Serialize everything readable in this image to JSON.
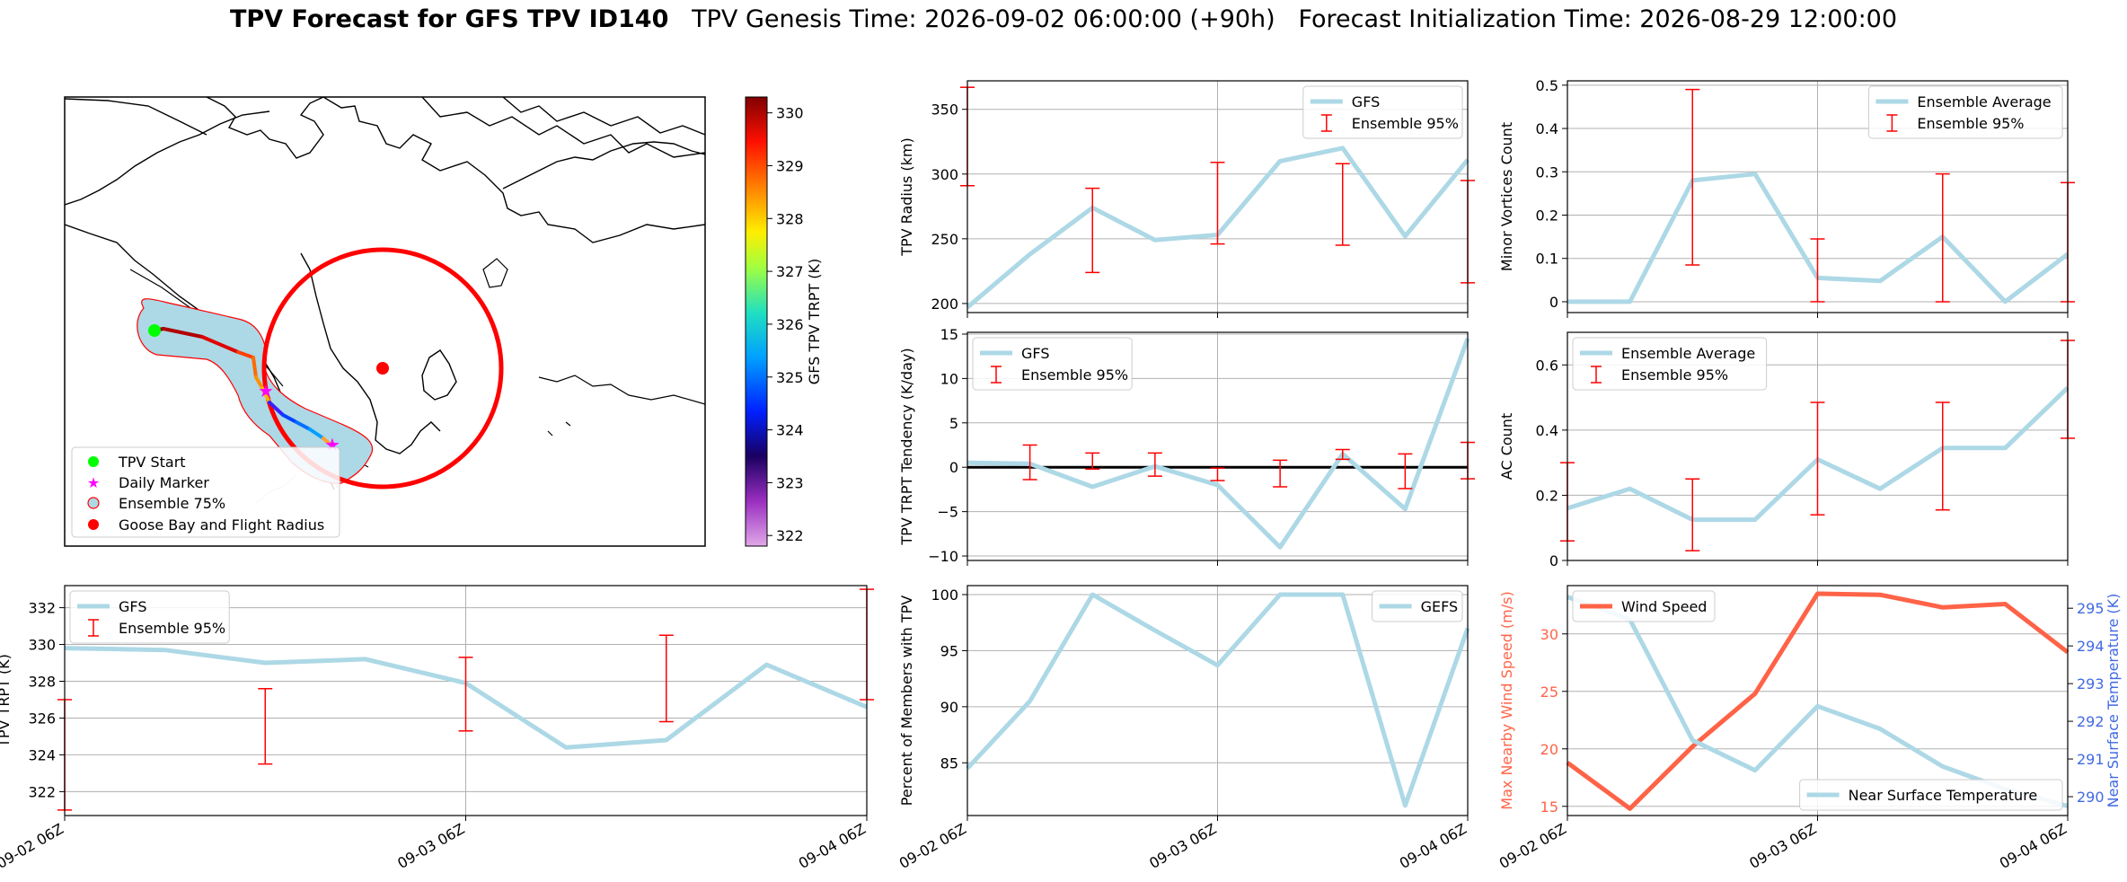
{
  "suptitle": {
    "bold": "TPV Forecast for GFS TPV ID140",
    "rest": "   TPV Genesis Time: 2026-09-02 06:00:00 (+90h)   Forecast Initialization Time: 2026-08-29 12:00:00"
  },
  "colors": {
    "gfs_line": "#add8e6",
    "errorbar": "#ff0000",
    "wind_line": "#ff6347",
    "temp_axis": "#4169e1",
    "tendency_zero": "#000000",
    "ensemble_shade": "#add8e6",
    "ensemble_edge": "#ff0000",
    "start_marker": "#00ff00",
    "daily_marker": "#ff00ff",
    "goose_bay": "#ff0000"
  },
  "map": {
    "colorbar_label": "GFS TPV TRPT (K)",
    "colorbar_ticks": [
      322,
      323,
      324,
      325,
      326,
      327,
      328,
      329,
      330
    ],
    "colorbar_range": [
      321.8,
      330.3
    ],
    "legend": [
      "TPV Start",
      "Daily Marker",
      "Ensemble 75%",
      "Goose Bay and Flight Radius"
    ]
  },
  "chart_data": [
    {
      "id": "radius",
      "type": "line",
      "ylabel": "TPV Radius (km)",
      "xlim": [
        0,
        48
      ],
      "ylim": [
        193,
        372
      ],
      "yticks": [
        200,
        250,
        300,
        350
      ],
      "xticks": [
        0,
        24,
        48
      ],
      "xticklabels": [],
      "legend": [
        "GFS",
        "Ensemble 95%"
      ],
      "legend_loc": "upper right",
      "series": [
        {
          "name": "GFS",
          "x": [
            0,
            6,
            12,
            18,
            24,
            30,
            36,
            42,
            48
          ],
          "y": [
            197,
            238,
            274,
            249,
            253,
            310,
            320,
            252,
            311
          ]
        }
      ],
      "errorbars": {
        "x": [
          0,
          12,
          24,
          36,
          48
        ],
        "low": [
          291,
          224,
          246,
          245,
          216
        ],
        "high": [
          367,
          289,
          309,
          308,
          295
        ]
      }
    },
    {
      "id": "minor_vortices",
      "type": "line",
      "ylabel": "Minor Vortices Count",
      "xlim": [
        0,
        48
      ],
      "ylim": [
        -0.025,
        0.51
      ],
      "yticks": [
        0.0,
        0.1,
        0.2,
        0.3,
        0.4,
        0.5
      ],
      "xticks": [
        0,
        24,
        48
      ],
      "xticklabels": [],
      "legend": [
        "Ensemble Average",
        "Ensemble 95%"
      ],
      "legend_loc": "upper right",
      "series": [
        {
          "name": "Ensemble Average",
          "x": [
            0,
            6,
            12,
            18,
            24,
            30,
            36,
            42,
            48
          ],
          "y": [
            0.0,
            0.0,
            0.28,
            0.295,
            0.055,
            0.048,
            0.15,
            0.0,
            0.11
          ]
        }
      ],
      "errorbars": {
        "x": [
          12,
          24,
          36,
          48
        ],
        "low": [
          0.085,
          0.0,
          0.0,
          0.0
        ],
        "high": [
          0.49,
          0.145,
          0.295,
          0.275
        ]
      }
    },
    {
      "id": "tendency",
      "type": "line",
      "ylabel": "TPV TRPT Tendency (K/day)",
      "xlim": [
        0,
        48
      ],
      "ylim": [
        -10.5,
        15.2
      ],
      "yticks": [
        -10,
        -5,
        0,
        5,
        10,
        15
      ],
      "xticks": [
        0,
        24,
        48
      ],
      "xticklabels": [],
      "legend": [
        "GFS",
        "Ensemble 95%"
      ],
      "legend_loc": "upper left",
      "zero_line": true,
      "series": [
        {
          "name": "GFS",
          "x": [
            0,
            6,
            12,
            18,
            24,
            30,
            36,
            42,
            48
          ],
          "y": [
            0.5,
            0.4,
            -2.2,
            0.1,
            -2.0,
            -9.0,
            1.5,
            -4.7,
            14.5
          ]
        }
      ],
      "errorbars": {
        "x": [
          6,
          12,
          18,
          24,
          30,
          36,
          42,
          48
        ],
        "low": [
          -1.4,
          -0.2,
          -1.0,
          -1.5,
          -2.2,
          0.9,
          -2.4,
          -1.3
        ],
        "high": [
          2.5,
          1.6,
          1.6,
          -0.1,
          0.8,
          2.0,
          1.5,
          2.8
        ]
      }
    },
    {
      "id": "ac_count",
      "type": "line",
      "ylabel": "AC Count",
      "xlim": [
        0,
        48
      ],
      "ylim": [
        0.0,
        0.7
      ],
      "yticks": [
        0.0,
        0.2,
        0.4,
        0.6
      ],
      "xticks": [
        0,
        24,
        48
      ],
      "xticklabels": [],
      "legend": [
        "Ensemble Average",
        "Ensemble 95%"
      ],
      "legend_loc": "upper left",
      "series": [
        {
          "name": "Ensemble Average",
          "x": [
            0,
            6,
            12,
            18,
            24,
            30,
            36,
            42,
            48
          ],
          "y": [
            0.16,
            0.22,
            0.125,
            0.125,
            0.31,
            0.22,
            0.345,
            0.345,
            0.53
          ]
        }
      ],
      "errorbars": {
        "x": [
          0,
          12,
          24,
          36,
          48
        ],
        "low": [
          0.06,
          0.03,
          0.14,
          0.155,
          0.375
        ],
        "high": [
          0.3,
          0.25,
          0.485,
          0.485,
          0.675
        ]
      }
    },
    {
      "id": "trpt",
      "type": "line",
      "ylabel": "TPV TRPT (K)",
      "xlim": [
        0,
        48
      ],
      "ylim": [
        320.7,
        333.2
      ],
      "yticks": [
        322,
        324,
        326,
        328,
        330,
        332
      ],
      "xticks": [
        0,
        24,
        48
      ],
      "xticklabels": [
        "09-02 06Z",
        "09-03 06Z",
        "09-04 06Z"
      ],
      "legend": [
        "GFS",
        "Ensemble 95%"
      ],
      "legend_loc": "upper left",
      "series": [
        {
          "name": "GFS",
          "x": [
            0,
            6,
            12,
            18,
            24,
            30,
            36,
            42,
            48
          ],
          "y": [
            329.8,
            329.7,
            329.0,
            329.2,
            327.9,
            324.4,
            324.8,
            328.9,
            326.6
          ]
        }
      ],
      "errorbars": {
        "x": [
          0,
          12,
          24,
          36,
          48
        ],
        "low": [
          321.0,
          323.5,
          325.3,
          325.8,
          327.0
        ],
        "high": [
          327.0,
          327.6,
          329.3,
          330.5,
          333.0
        ]
      }
    },
    {
      "id": "members_pct",
      "type": "line",
      "ylabel": "Percent of Members with TPV",
      "xlim": [
        0,
        48
      ],
      "ylim": [
        80.3,
        100.8
      ],
      "yticks": [
        85,
        90,
        95,
        100
      ],
      "xticks": [
        0,
        24,
        48
      ],
      "xticklabels": [
        "09-02 06Z",
        "09-03 06Z",
        "09-04 06Z"
      ],
      "legend": [
        "GEFS"
      ],
      "legend_loc": "upper right",
      "series": [
        {
          "name": "GEFS",
          "x": [
            0,
            6,
            12,
            18,
            24,
            30,
            36,
            42,
            48
          ],
          "y": [
            84.5,
            90.5,
            100,
            96.8,
            93.7,
            100,
            100,
            81.2,
            97.0
          ]
        }
      ]
    },
    {
      "id": "wind_temp",
      "type": "line",
      "ylabel": "Max Nearby Wind Speed (m/s)",
      "ylabel_right": "Near Surface Temperature (K)",
      "xlim": [
        0,
        48
      ],
      "ylim": [
        14.2,
        34.2
      ],
      "yticks": [
        15,
        20,
        25,
        30
      ],
      "ylim_right": [
        289.5,
        295.6
      ],
      "yticks_right": [
        290,
        291,
        292,
        293,
        294,
        295
      ],
      "xticks": [
        0,
        24,
        48
      ],
      "xticklabels": [
        "09-02 06Z",
        "09-03 06Z",
        "09-04 06Z"
      ],
      "legend": [
        "Wind Speed",
        "Near Surface Temperature"
      ],
      "legend_loc": [
        "upper left",
        "lower right"
      ],
      "series": [
        {
          "name": "Wind Speed",
          "axis": "left",
          "x": [
            0,
            6,
            12,
            18,
            24,
            30,
            36,
            42,
            48
          ],
          "y": [
            18.8,
            14.8,
            20.2,
            24.8,
            33.5,
            33.4,
            32.3,
            32.6,
            28.4
          ]
        },
        {
          "name": "Near Surface Temperature",
          "axis": "right",
          "x": [
            0,
            6,
            12,
            18,
            24,
            30,
            36,
            42,
            48
          ],
          "y": [
            295.3,
            294.7,
            291.5,
            290.7,
            292.4,
            291.8,
            290.8,
            290.2,
            289.75
          ]
        }
      ]
    }
  ]
}
